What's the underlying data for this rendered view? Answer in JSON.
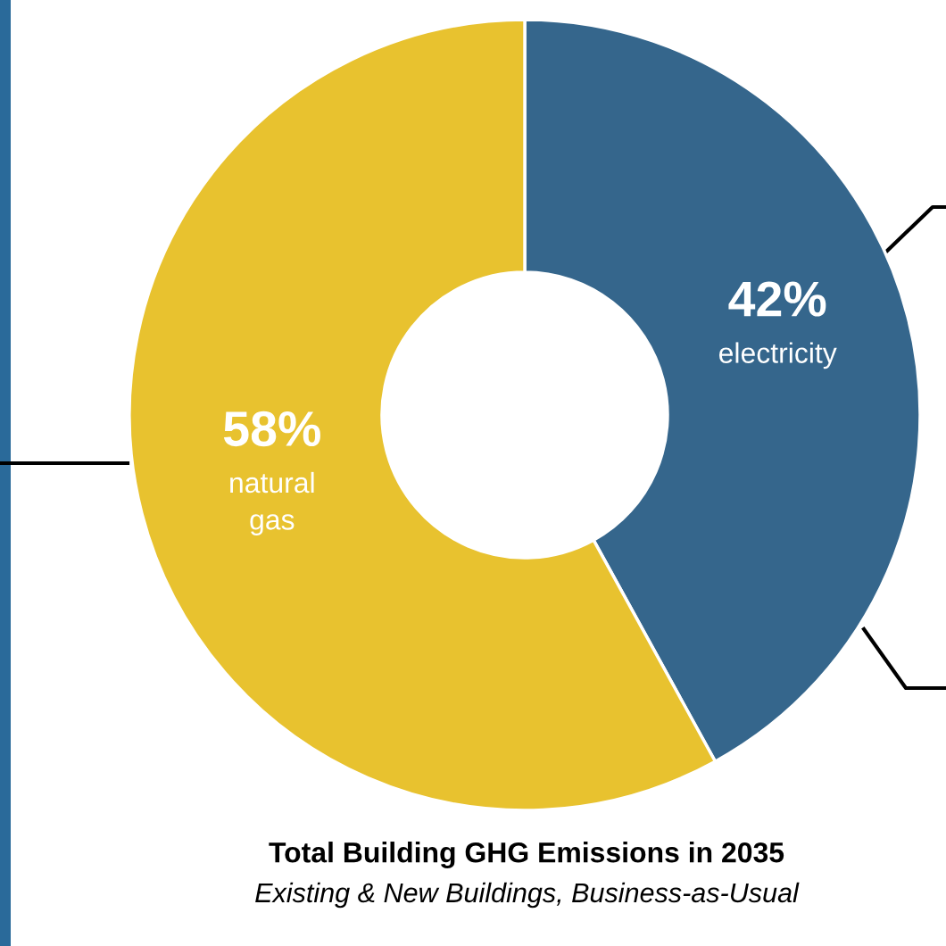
{
  "chart_data": {
    "type": "donut",
    "title": "Total Building GHG Emissions in 2035",
    "subtitle": "Existing & New Buildings, Business-as-Usual",
    "categories": [
      "electricity",
      "natural gas"
    ],
    "values": [
      42,
      58
    ],
    "colors": [
      "#35668c",
      "#e8c22f"
    ],
    "value_labels": [
      "42%",
      "58%"
    ]
  }
}
